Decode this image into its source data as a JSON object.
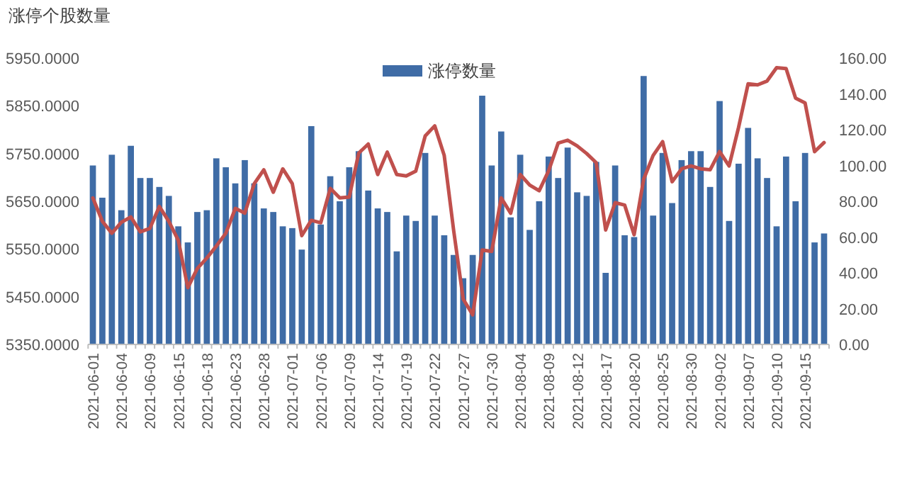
{
  "chart_data": {
    "type": "bar",
    "title": "涨停个股数量",
    "categories": [
      "2021-06-01",
      null,
      null,
      "2021-06-04",
      null,
      null,
      "2021-06-09",
      null,
      null,
      "2021-06-15",
      null,
      null,
      "2021-06-18",
      null,
      null,
      "2021-06-23",
      null,
      null,
      "2021-06-28",
      null,
      null,
      "2021-07-01",
      null,
      null,
      "2021-07-06",
      null,
      null,
      "2021-07-09",
      null,
      null,
      "2021-07-14",
      null,
      null,
      "2021-07-19",
      null,
      null,
      "2021-07-22",
      null,
      null,
      "2021-07-27",
      null,
      null,
      "2021-07-30",
      null,
      null,
      "2021-08-04",
      null,
      null,
      "2021-08-09",
      null,
      null,
      "2021-08-12",
      null,
      null,
      "2021-08-17",
      null,
      null,
      "2021-08-20",
      null,
      null,
      "2021-08-25",
      null,
      null,
      "2021-08-30",
      null,
      null,
      "2021-09-02",
      null,
      null,
      "2021-09-07",
      null,
      null,
      "2021-09-10",
      null,
      null,
      "2021-09-15",
      null,
      null
    ],
    "series": [
      {
        "name": "涨停数量",
        "axis": "y2",
        "color": "#3f6ca6",
        "values": [
          100,
          82,
          106,
          75,
          111,
          93,
          93,
          88,
          83,
          66,
          57,
          74,
          75,
          104,
          99,
          90,
          103,
          90,
          76,
          74,
          66,
          65,
          53,
          122,
          67,
          94,
          80,
          99,
          108,
          86,
          76,
          74,
          52,
          72,
          69,
          107,
          72,
          61,
          50,
          37,
          50,
          139,
          100,
          119,
          71,
          106,
          64,
          80,
          105,
          93,
          110,
          85,
          83,
          102,
          40,
          100,
          61,
          60,
          150,
          72,
          107,
          79,
          103,
          108,
          108,
          88,
          136,
          69,
          101,
          121,
          104,
          93,
          66,
          105,
          80,
          107,
          57,
          62
        ]
      },
      {
        "type": "line",
        "axis": "y",
        "color": "#c0504d",
        "values": [
          5657,
          5608,
          5583,
          5606,
          5617,
          5586,
          5593,
          5639,
          5608,
          5568,
          5469,
          5509,
          5531,
          5556,
          5583,
          5635,
          5625,
          5687,
          5716,
          5669,
          5718,
          5687,
          5578,
          5610,
          5605,
          5677,
          5657,
          5659,
          5751,
          5770,
          5706,
          5753,
          5706,
          5703,
          5713,
          5787,
          5808,
          5746,
          5588,
          5445,
          5412,
          5548,
          5545,
          5657,
          5625,
          5706,
          5684,
          5672,
          5714,
          5772,
          5778,
          5766,
          5750,
          5731,
          5590,
          5647,
          5642,
          5580,
          5696,
          5746,
          5775,
          5691,
          5718,
          5724,
          5718,
          5716,
          5754,
          5724,
          5805,
          5896,
          5894,
          5902,
          5930,
          5928,
          5866,
          5856,
          5754,
          5773
        ]
      }
    ],
    "ylim": [
      5350,
      5950
    ],
    "yticks": [
      {
        "value": 5350,
        "label": "5350.0000"
      },
      {
        "value": 5450,
        "label": "5450.0000"
      },
      {
        "value": 5550,
        "label": "5550.0000"
      },
      {
        "value": 5650,
        "label": "5650.0000"
      },
      {
        "value": 5750,
        "label": "5750.0000"
      },
      {
        "value": 5850,
        "label": "5850.0000"
      },
      {
        "value": 5950,
        "label": "5950.0000"
      }
    ],
    "y2lim": [
      0,
      160
    ],
    "y2ticks": [
      {
        "value": 0,
        "label": "0.00"
      },
      {
        "value": 20,
        "label": "20.00"
      },
      {
        "value": 40,
        "label": "40.00"
      },
      {
        "value": 60,
        "label": "60.00"
      },
      {
        "value": 80,
        "label": "80.00"
      },
      {
        "value": 100,
        "label": "100.00"
      },
      {
        "value": 120,
        "label": "120.00"
      },
      {
        "value": 140,
        "label": "140.00"
      },
      {
        "value": 160,
        "label": "160.00"
      }
    ],
    "legend": "top",
    "grid": false
  }
}
